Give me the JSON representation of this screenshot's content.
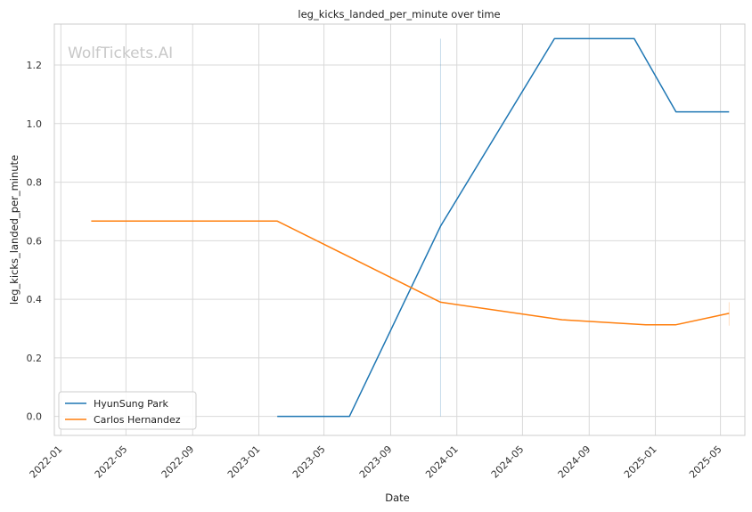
{
  "watermark": "WolfTickets.AI",
  "chart_data": {
    "type": "line",
    "title": "leg_kicks_landed_per_minute over time",
    "xlabel": "Date",
    "ylabel": "leg_kicks_landed_per_minute",
    "x_type": "date",
    "xlim": [
      "2021-12-20",
      "2025-06-15"
    ],
    "ylim": [
      -0.065,
      1.34
    ],
    "x_ticks": [
      "2022-01",
      "2022-05",
      "2022-09",
      "2023-01",
      "2023-05",
      "2023-09",
      "2024-01",
      "2024-05",
      "2024-09",
      "2025-01",
      "2025-05"
    ],
    "y_ticks": [
      0.0,
      0.2,
      0.4,
      0.6,
      0.8,
      1.0,
      1.2
    ],
    "y_tick_labels": [
      "0.0",
      "0.2",
      "0.4",
      "0.6",
      "0.8",
      "1.0",
      "1.2"
    ],
    "grid": true,
    "legend_position": "lower-left",
    "series": [
      {
        "name": "HyunSung Park",
        "color": "#1f77b4",
        "points": [
          {
            "x": "2023-02-04",
            "y": 0.0
          },
          {
            "x": "2023-06-17",
            "y": 0.0
          },
          {
            "x": "2023-12-02",
            "y": 0.65
          },
          {
            "x": "2024-06-29",
            "y": 1.29
          },
          {
            "x": "2024-11-23",
            "y": 1.29
          },
          {
            "x": "2025-02-08",
            "y": 1.04
          },
          {
            "x": "2025-05-17",
            "y": 1.04
          }
        ],
        "error_bar": {
          "x": "2023-12-02",
          "low": 0.0,
          "high": 1.29
        }
      },
      {
        "name": "Carlos Hernandez",
        "color": "#ff7f0e",
        "points": [
          {
            "x": "2022-02-26",
            "y": 0.667
          },
          {
            "x": "2023-02-04",
            "y": 0.667
          },
          {
            "x": "2023-12-02",
            "y": 0.39
          },
          {
            "x": "2024-07-13",
            "y": 0.33
          },
          {
            "x": "2024-12-14",
            "y": 0.313
          },
          {
            "x": "2025-02-08",
            "y": 0.313
          },
          {
            "x": "2025-05-17",
            "y": 0.352
          }
        ],
        "error_bar": {
          "x": "2025-05-17",
          "low": 0.31,
          "high": 0.39
        }
      }
    ]
  }
}
